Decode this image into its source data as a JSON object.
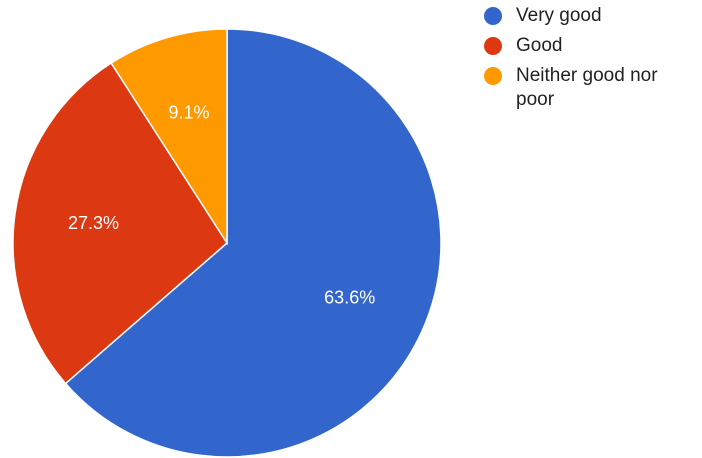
{
  "chart_data": {
    "type": "pie",
    "categories": [
      "Very good",
      "Good",
      "Neither good nor poor"
    ],
    "values": [
      63.6,
      27.3,
      9.1
    ],
    "labels": [
      "63.6%",
      "27.3%",
      "9.1%"
    ],
    "colors": [
      "#3366cc",
      "#dc3912",
      "#ff9900"
    ],
    "start_angle": "12 o'clock",
    "direction": "clockwise",
    "legend_position": "right"
  }
}
